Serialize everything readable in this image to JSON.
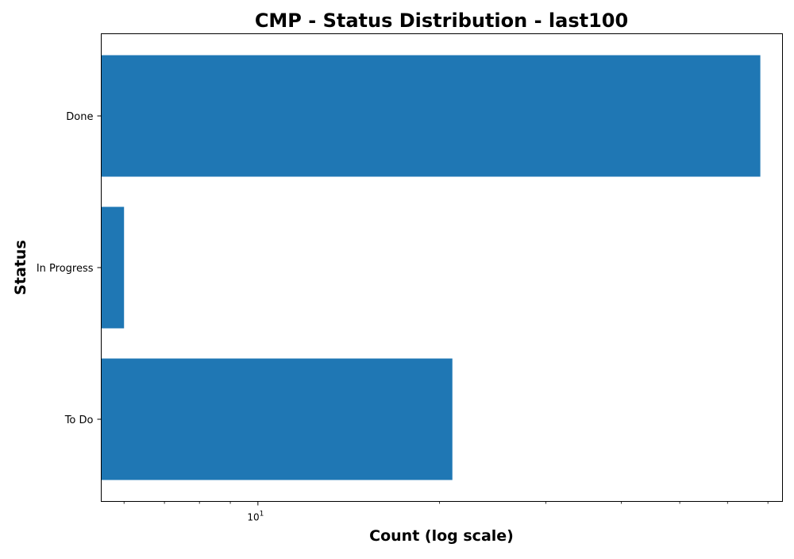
{
  "chart_data": {
    "type": "bar",
    "orientation": "horizontal",
    "title": "CMP - Status Distribution - last100",
    "xlabel": "Count (log scale)",
    "ylabel": "Status",
    "x_scale": "log",
    "xlim": [
      5.5,
      74
    ],
    "categories": [
      "Done",
      "In Progress",
      "To Do"
    ],
    "values": [
      68,
      6,
      21
    ],
    "x_major_ticks": [
      {
        "base": "10",
        "exponent": "1",
        "value": 10
      }
    ],
    "x_minor_ticks": [
      6,
      7,
      8,
      9,
      20,
      30,
      40,
      50,
      60,
      70
    ],
    "bar_color": "#1f77b4",
    "grid": false,
    "legend": "none"
  }
}
